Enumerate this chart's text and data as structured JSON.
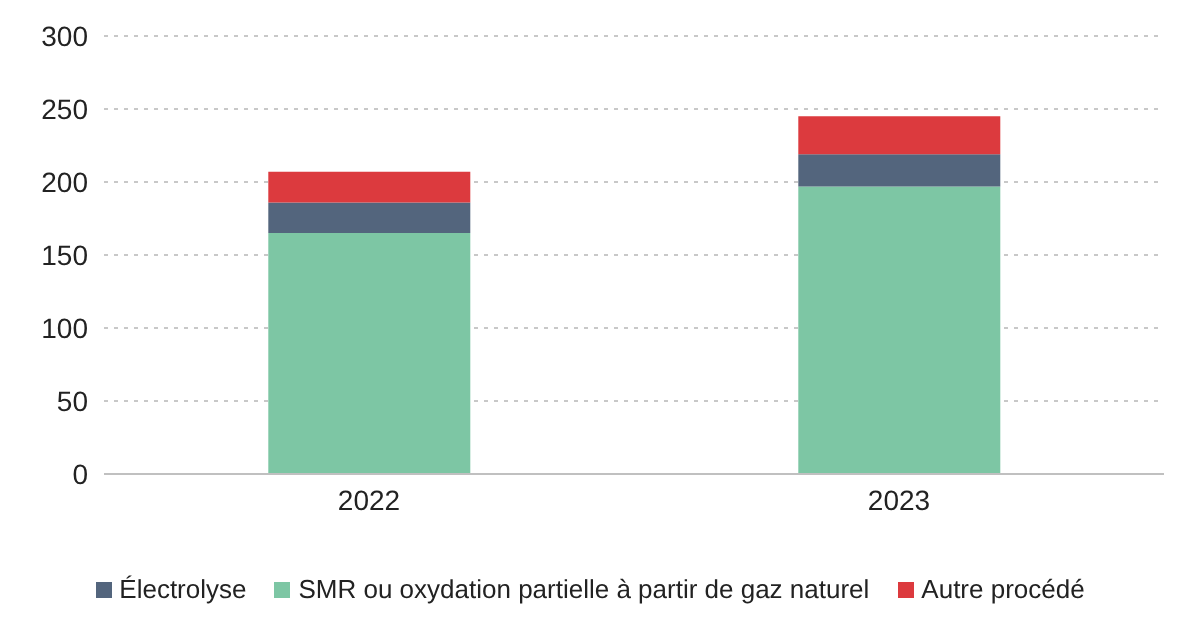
{
  "chart_data": {
    "type": "bar",
    "stacked": true,
    "categories": [
      "2022",
      "2023"
    ],
    "series": [
      {
        "name": "SMR ou oxydation partielle à partir de gaz naturel",
        "color": "#7dc6a4",
        "values": [
          165,
          197
        ]
      },
      {
        "name": "Électrolyse",
        "color": "#53657d",
        "values": [
          21,
          22
        ]
      },
      {
        "name": "Autre procédé",
        "color": "#dc3a3e",
        "values": [
          21,
          26
        ]
      }
    ],
    "ylim": [
      0,
      300
    ],
    "yticks": [
      0,
      50,
      100,
      150,
      200,
      250,
      300
    ],
    "grid": "y",
    "legend": "bottom"
  }
}
